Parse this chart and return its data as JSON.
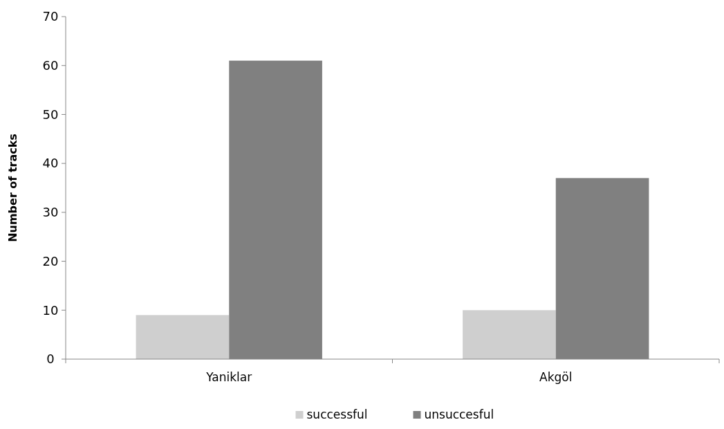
{
  "chart_data": {
    "type": "bar",
    "ylabel": "Number of tracks",
    "categories": [
      "Yaniklar",
      "Akgöl"
    ],
    "series": [
      {
        "name": "successful",
        "color": "#cfcfcf",
        "values": [
          9,
          10
        ]
      },
      {
        "name": "unsuccesful",
        "color": "#808080",
        "values": [
          61,
          37
        ]
      }
    ],
    "ylim": [
      0,
      70
    ],
    "yticks": [
      0,
      10,
      20,
      30,
      40,
      50,
      60,
      70
    ],
    "grid": false,
    "legend": "bottom"
  }
}
